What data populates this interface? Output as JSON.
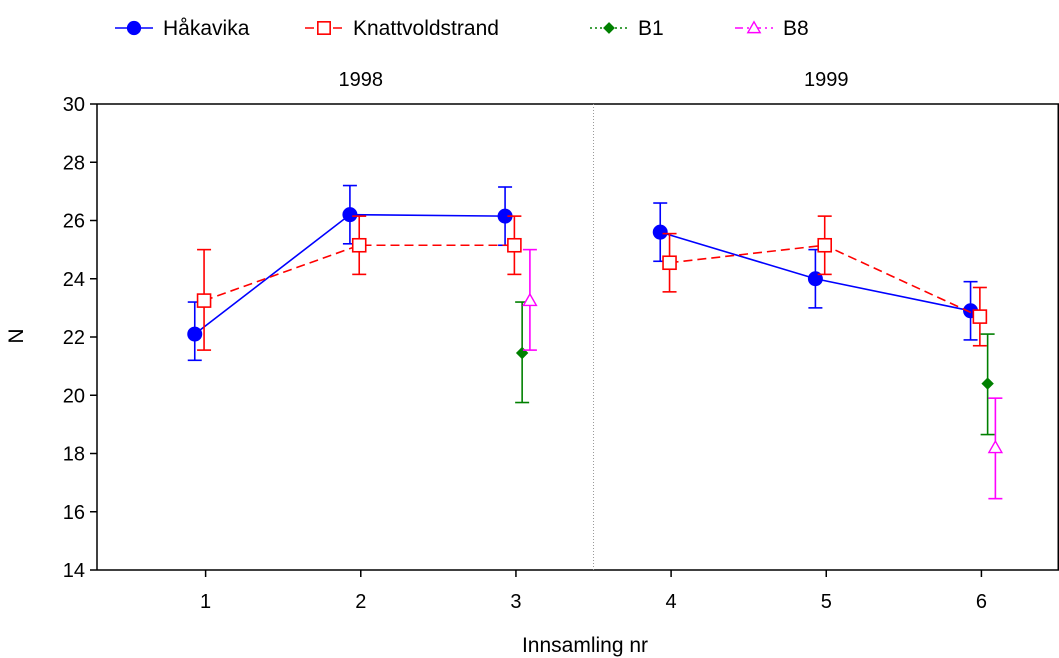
{
  "chart_data": {
    "type": "line",
    "title": "",
    "xlabel": "Innsamling nr",
    "ylabel": "N",
    "x": [
      1,
      2,
      3,
      4,
      5,
      6
    ],
    "xlim": [
      0.3,
      6.5
    ],
    "ylim": [
      14,
      30
    ],
    "yticks": [
      14,
      16,
      18,
      20,
      22,
      24,
      26,
      28,
      30
    ],
    "xticks": [
      1,
      2,
      3,
      4,
      5,
      6
    ],
    "grid": false,
    "legend_position": "top",
    "panel_labels": [
      {
        "text": "1998",
        "x": 2
      },
      {
        "text": "1999",
        "x": 5
      }
    ],
    "divider_x": 3.5,
    "series": [
      {
        "name": "Håkavika",
        "color": "#0000ff",
        "line_style": "solid",
        "marker": "filled-circle",
        "points": [
          {
            "x": 1,
            "y": 22.1,
            "lo": 21.2,
            "hi": 23.2
          },
          {
            "x": 2,
            "y": 26.2,
            "lo": 25.2,
            "hi": 27.2
          },
          {
            "x": 3,
            "y": 26.15,
            "lo": 25.15,
            "hi": 27.15
          },
          {
            "x": 4,
            "y": 25.6,
            "lo": 24.6,
            "hi": 26.6
          },
          {
            "x": 5,
            "y": 24.0,
            "lo": 23.0,
            "hi": 25.0
          },
          {
            "x": 6,
            "y": 22.9,
            "lo": 21.9,
            "hi": 23.9
          }
        ]
      },
      {
        "name": "Knattvoldstrand",
        "color": "#ff0000",
        "line_style": "dashed",
        "marker": "open-square",
        "points": [
          {
            "x": 1,
            "y": 23.25,
            "lo": 21.55,
            "hi": 25.0
          },
          {
            "x": 2,
            "y": 25.15,
            "lo": 24.15,
            "hi": 26.15
          },
          {
            "x": 3,
            "y": 25.15,
            "lo": 24.15,
            "hi": 26.15
          },
          {
            "x": 4,
            "y": 24.55,
            "lo": 23.55,
            "hi": 25.55
          },
          {
            "x": 5,
            "y": 25.15,
            "lo": 24.15,
            "hi": 26.15
          },
          {
            "x": 6,
            "y": 22.7,
            "lo": 21.7,
            "hi": 23.7
          }
        ]
      },
      {
        "name": "B1",
        "color": "#008000",
        "line_style": "dotted",
        "marker": "filled-diamond",
        "points": [
          {
            "x": 3,
            "y": 21.45,
            "lo": 19.75,
            "hi": 23.2
          },
          {
            "x": 6,
            "y": 20.4,
            "lo": 18.65,
            "hi": 22.1
          }
        ]
      },
      {
        "name": "B8",
        "color": "#ff00ff",
        "line_style": "dashdot",
        "marker": "open-triangle",
        "points": [
          {
            "x": 3,
            "y": 23.25,
            "lo": 21.55,
            "hi": 25.0
          },
          {
            "x": 6,
            "y": 18.2,
            "lo": 16.45,
            "hi": 19.9
          }
        ]
      }
    ]
  }
}
